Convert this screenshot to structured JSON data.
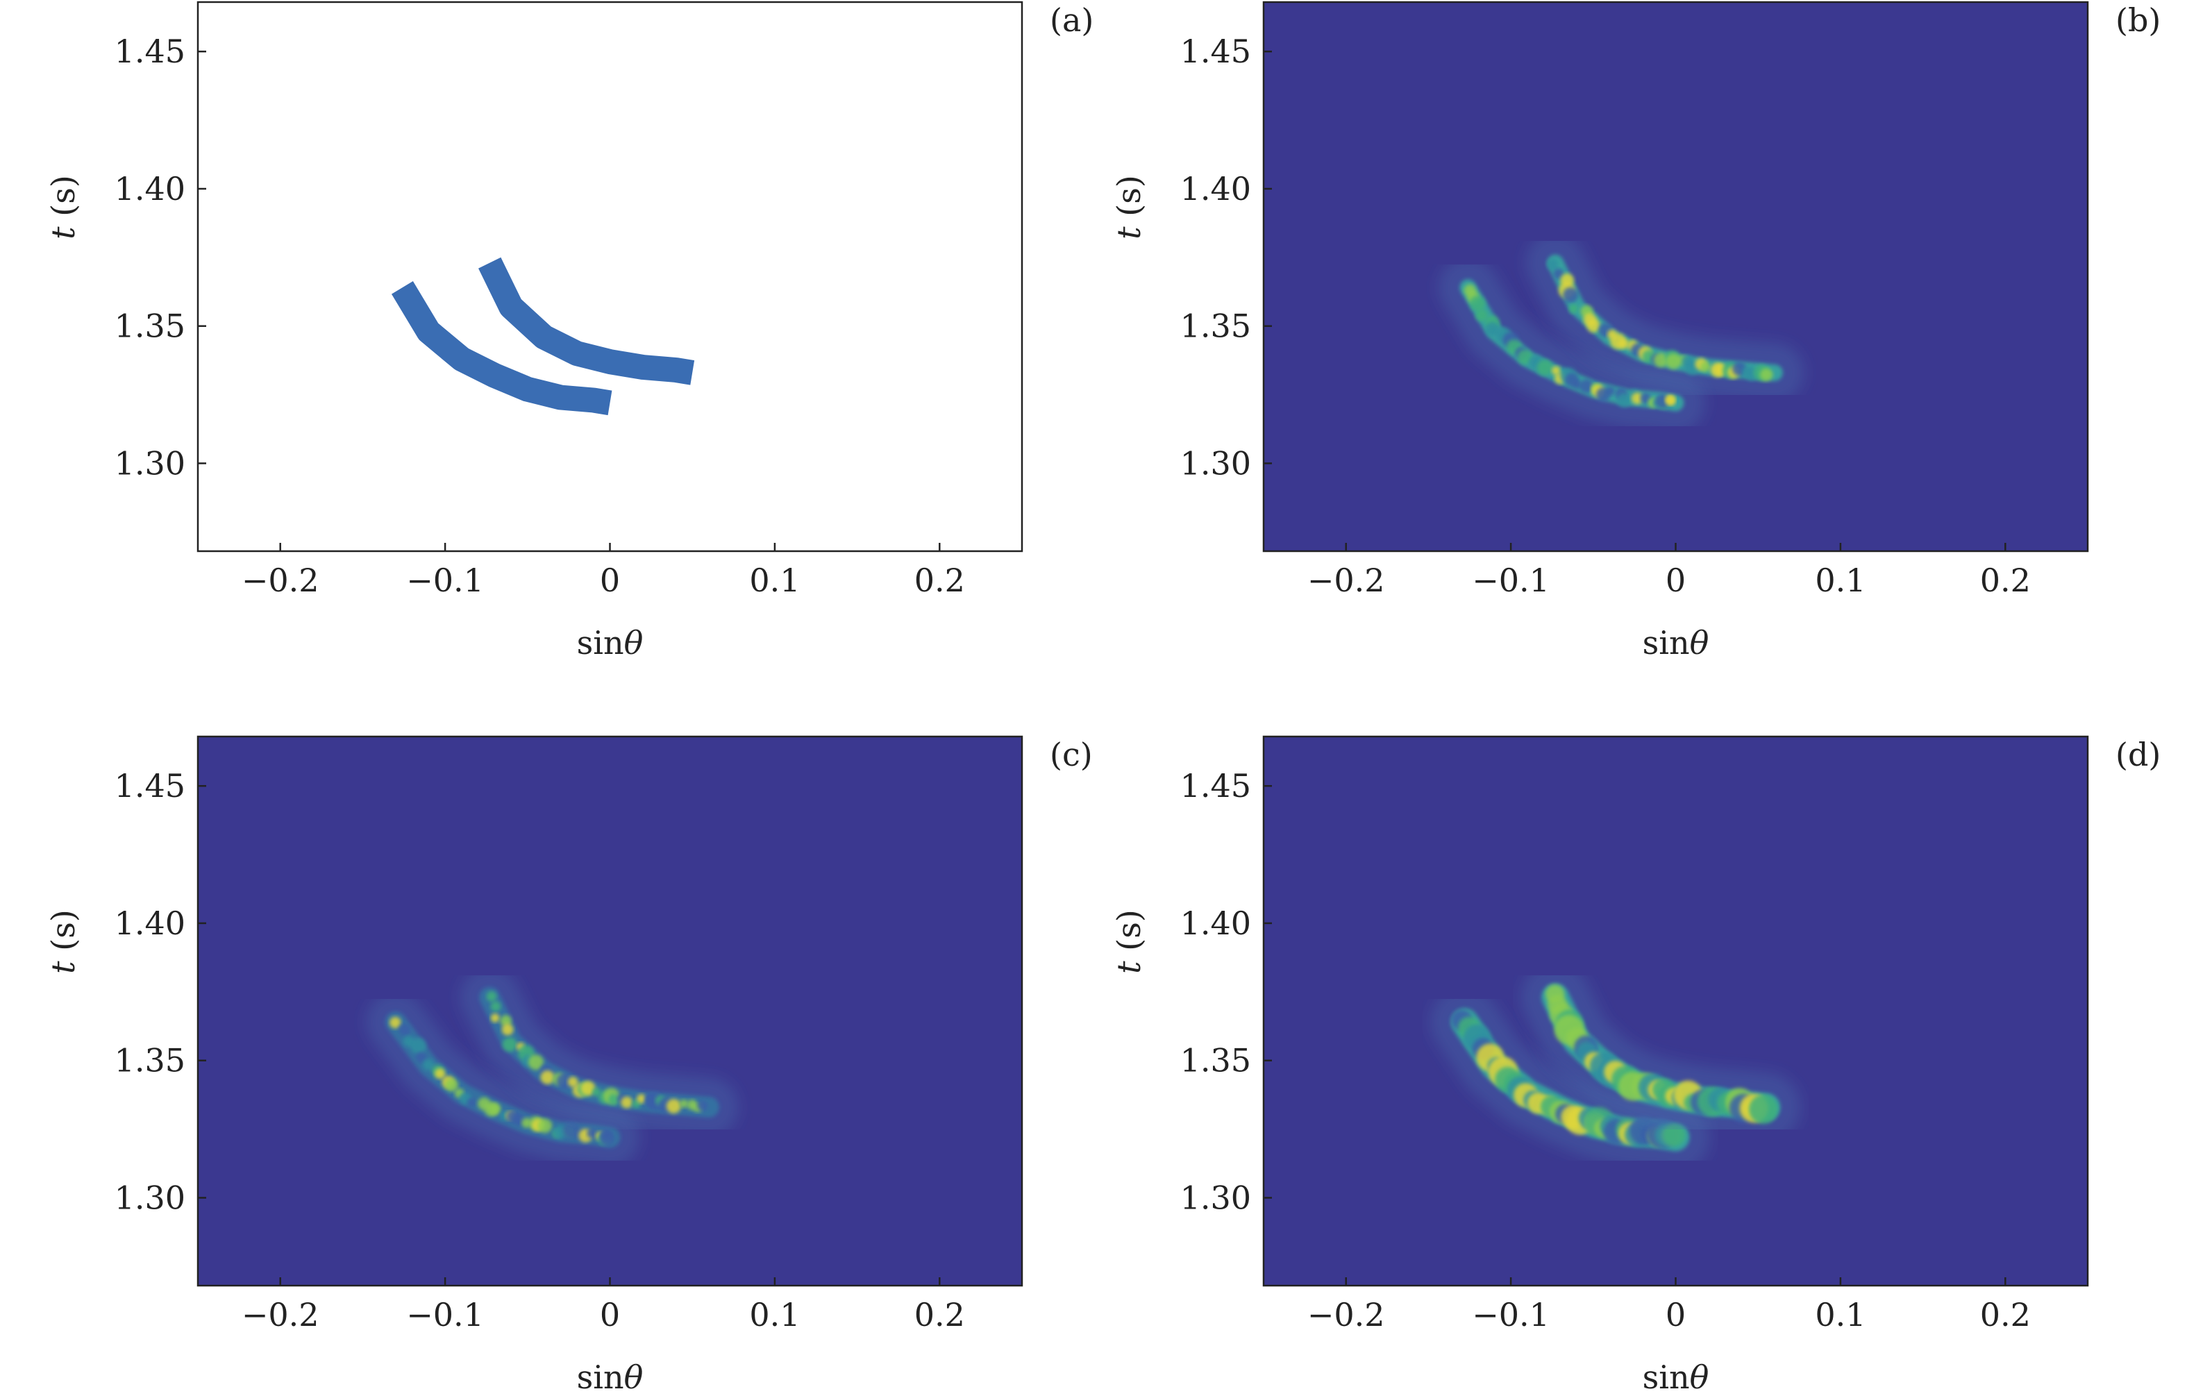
{
  "chart_data": [
    {
      "panel": "(a)",
      "type": "scatter",
      "xlabel": "sinθ",
      "ylabel": "t (s)",
      "xlim": [
        -0.25,
        0.25
      ],
      "ylim": [
        1.268,
        1.468
      ],
      "xticks": [
        -0.2,
        -0.1,
        0,
        0.1,
        0.2
      ],
      "xtick_labels": [
        "−0.2",
        "−0.1",
        "0",
        "0.1",
        "0.2"
      ],
      "yticks": [
        1.3,
        1.35,
        1.4,
        1.45
      ],
      "ytick_labels": [
        "1.30",
        "1.35",
        "1.40",
        "1.45"
      ],
      "background": "#ffffff",
      "color": "#3a6db3",
      "series": [
        {
          "x": [
            -0.126,
            -0.11,
            -0.09,
            -0.07,
            -0.05,
            -0.03,
            -0.01,
            0.0
          ],
          "y": [
            1.364,
            1.348,
            1.338,
            1.332,
            1.327,
            1.324,
            1.323,
            1.322
          ]
        },
        {
          "x": [
            -0.073,
            -0.06,
            -0.04,
            -0.02,
            0.0,
            0.02,
            0.04,
            0.05
          ],
          "y": [
            1.373,
            1.357,
            1.346,
            1.34,
            1.337,
            1.335,
            1.334,
            1.333
          ]
        }
      ]
    },
    {
      "panel": "(b)",
      "type": "heatmap",
      "xlabel": "sinθ",
      "ylabel": "t (s)",
      "xlim": [
        -0.25,
        0.25
      ],
      "ylim": [
        1.268,
        1.468
      ],
      "xticks": [
        -0.2,
        -0.1,
        0,
        0.1,
        0.2
      ],
      "xtick_labels": [
        "−0.2",
        "−0.1",
        "0",
        "0.1",
        "0.2"
      ],
      "yticks": [
        1.3,
        1.35,
        1.4,
        1.45
      ],
      "ytick_labels": [
        "1.30",
        "1.35",
        "1.40",
        "1.45"
      ],
      "background": "#3b3890",
      "series": [
        {
          "x": [
            -0.126,
            -0.11,
            -0.09,
            -0.07,
            -0.05,
            -0.03,
            -0.01,
            0.0
          ],
          "y": [
            1.364,
            1.348,
            1.338,
            1.332,
            1.327,
            1.324,
            1.323,
            1.322
          ]
        },
        {
          "x": [
            -0.073,
            -0.06,
            -0.04,
            -0.02,
            0.0,
            0.02,
            0.04,
            0.06
          ],
          "y": [
            1.373,
            1.357,
            1.346,
            1.34,
            1.337,
            1.335,
            1.334,
            1.333
          ]
        }
      ]
    },
    {
      "panel": "(c)",
      "type": "heatmap",
      "xlabel": "sinθ",
      "ylabel": "t (s)",
      "xlim": [
        -0.25,
        0.25
      ],
      "ylim": [
        1.268,
        1.468
      ],
      "xticks": [
        -0.2,
        -0.1,
        0,
        0.1,
        0.2
      ],
      "xtick_labels": [
        "−0.2",
        "−0.1",
        "0",
        "0.1",
        "0.2"
      ],
      "yticks": [
        1.3,
        1.35,
        1.4,
        1.45
      ],
      "ytick_labels": [
        "1.30",
        "1.35",
        "1.40",
        "1.45"
      ],
      "background": "#3b3890",
      "series": [
        {
          "x": [
            -0.13,
            -0.11,
            -0.09,
            -0.07,
            -0.05,
            -0.03,
            -0.01,
            0.0
          ],
          "y": [
            1.364,
            1.348,
            1.338,
            1.332,
            1.327,
            1.324,
            1.323,
            1.322
          ]
        },
        {
          "x": [
            -0.073,
            -0.06,
            -0.04,
            -0.02,
            0.0,
            0.02,
            0.04,
            0.06
          ],
          "y": [
            1.373,
            1.357,
            1.346,
            1.34,
            1.337,
            1.335,
            1.334,
            1.333
          ]
        }
      ]
    },
    {
      "panel": "(d)",
      "type": "heatmap",
      "xlabel": "sinθ",
      "ylabel": "t (s)",
      "xlim": [
        -0.25,
        0.25
      ],
      "ylim": [
        1.268,
        1.468
      ],
      "xticks": [
        -0.2,
        -0.1,
        0,
        0.1,
        0.2
      ],
      "xtick_labels": [
        "−0.2",
        "−0.1",
        "0",
        "0.1",
        "0.2"
      ],
      "yticks": [
        1.3,
        1.35,
        1.4,
        1.45
      ],
      "ytick_labels": [
        "1.30",
        "1.35",
        "1.40",
        "1.45"
      ],
      "background": "#3b3890",
      "series": [
        {
          "x": [
            -0.128,
            -0.11,
            -0.09,
            -0.07,
            -0.05,
            -0.03,
            -0.01,
            0.0
          ],
          "y": [
            1.364,
            1.348,
            1.338,
            1.332,
            1.327,
            1.324,
            1.323,
            1.322
          ]
        },
        {
          "x": [
            -0.073,
            -0.06,
            -0.04,
            -0.02,
            0.0,
            0.02,
            0.04,
            0.055
          ],
          "y": [
            1.373,
            1.357,
            1.346,
            1.34,
            1.337,
            1.335,
            1.334,
            1.333
          ]
        }
      ]
    }
  ]
}
